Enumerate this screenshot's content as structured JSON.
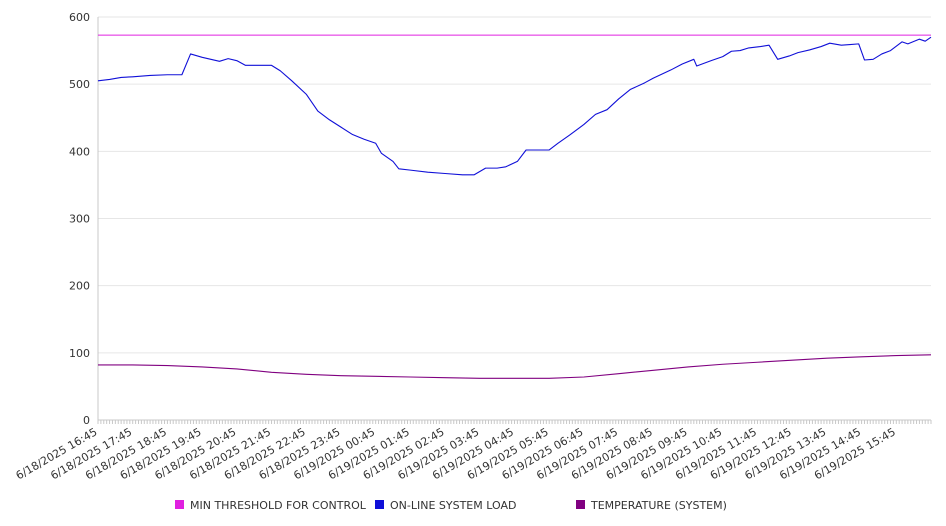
{
  "chart_data": {
    "type": "line",
    "title": "",
    "xlabel": "",
    "ylabel": "",
    "x_start": "6/18/2025 16:45",
    "x_end": "6/19/2025 16:45",
    "x_ticks": [
      "6/18/2025 16:45",
      "6/18/2025 17:45",
      "6/18/2025 18:45",
      "6/18/2025 19:45",
      "6/18/2025 20:45",
      "6/18/2025 21:45",
      "6/18/2025 22:45",
      "6/18/2025 23:45",
      "6/19/2025 00:45",
      "6/19/2025 01:45",
      "6/19/2025 02:45",
      "6/19/2025 03:45",
      "6/19/2025 04:45",
      "6/19/2025 05:45",
      "6/19/2025 06:45",
      "6/19/2025 07:45",
      "6/19/2025 08:45",
      "6/19/2025 09:45",
      "6/19/2025 10:45",
      "6/19/2025 11:45",
      "6/19/2025 12:45",
      "6/19/2025 13:45",
      "6/19/2025 14:45",
      "6/19/2025 15:45"
    ],
    "y_ticks": [
      "0",
      "100",
      "200",
      "300",
      "400",
      "500",
      "600"
    ],
    "ylim": [
      0,
      600
    ],
    "grid": true,
    "legend_position": "bottom",
    "series": [
      {
        "name": "MIN THRESHOLD FOR CONTROL",
        "color": "#e020e0",
        "points": [
          [
            "6/18/2025 16:45",
            573
          ],
          [
            "6/19/2025 16:45",
            573
          ]
        ]
      },
      {
        "name": "ON-LINE SYSTEM LOAD",
        "color": "#1010d8",
        "points": [
          [
            "6/18/2025 16:45",
            505
          ],
          [
            "6/18/2025 17:05",
            507
          ],
          [
            "6/18/2025 17:25",
            510
          ],
          [
            "6/18/2025 17:45",
            511
          ],
          [
            "6/18/2025 18:15",
            513
          ],
          [
            "6/18/2025 18:45",
            514
          ],
          [
            "6/18/2025 19:10",
            514
          ],
          [
            "6/18/2025 19:25",
            545
          ],
          [
            "6/18/2025 19:45",
            540
          ],
          [
            "6/18/2025 20:15",
            534
          ],
          [
            "6/18/2025 20:30",
            538
          ],
          [
            "6/18/2025 20:45",
            535
          ],
          [
            "6/18/2025 21:00",
            528
          ],
          [
            "6/18/2025 21:30",
            528
          ],
          [
            "6/18/2025 21:45",
            528
          ],
          [
            "6/18/2025 22:00",
            520
          ],
          [
            "6/18/2025 22:20",
            505
          ],
          [
            "6/18/2025 22:45",
            485
          ],
          [
            "6/18/2025 23:05",
            460
          ],
          [
            "6/18/2025 23:25",
            447
          ],
          [
            "6/18/2025 23:45",
            436
          ],
          [
            "6/19/2025 00:05",
            425
          ],
          [
            "6/19/2025 00:25",
            418
          ],
          [
            "6/19/2025 00:45",
            412
          ],
          [
            "6/19/2025 00:55",
            397
          ],
          [
            "6/19/2025 01:15",
            385
          ],
          [
            "6/19/2025 01:25",
            374
          ],
          [
            "6/19/2025 01:45",
            372
          ],
          [
            "6/19/2025 02:15",
            369
          ],
          [
            "6/19/2025 02:45",
            367
          ],
          [
            "6/19/2025 03:15",
            365
          ],
          [
            "6/19/2025 03:35",
            365
          ],
          [
            "6/19/2025 03:55",
            375
          ],
          [
            "6/19/2025 04:15",
            375
          ],
          [
            "6/19/2025 04:30",
            377
          ],
          [
            "6/19/2025 04:50",
            385
          ],
          [
            "6/19/2025 05:05",
            402
          ],
          [
            "6/19/2025 05:25",
            402
          ],
          [
            "6/19/2025 05:45",
            402
          ],
          [
            "6/19/2025 06:00",
            412
          ],
          [
            "6/19/2025 06:20",
            424
          ],
          [
            "6/19/2025 06:45",
            440
          ],
          [
            "6/19/2025 07:05",
            455
          ],
          [
            "6/19/2025 07:25",
            462
          ],
          [
            "6/19/2025 07:45",
            478
          ],
          [
            "6/19/2025 08:05",
            492
          ],
          [
            "6/19/2025 08:30",
            502
          ],
          [
            "6/19/2025 08:45",
            509
          ],
          [
            "6/19/2025 09:15",
            521
          ],
          [
            "6/19/2025 09:35",
            530
          ],
          [
            "6/19/2025 09:55",
            537
          ],
          [
            "6/19/2025 10:00",
            527
          ],
          [
            "6/19/2025 10:25",
            535
          ],
          [
            "6/19/2025 10:45",
            541
          ],
          [
            "6/19/2025 11:00",
            549
          ],
          [
            "6/19/2025 11:15",
            550
          ],
          [
            "6/19/2025 11:30",
            554
          ],
          [
            "6/19/2025 11:50",
            556
          ],
          [
            "6/19/2025 12:05",
            558
          ],
          [
            "6/19/2025 12:20",
            537
          ],
          [
            "6/19/2025 12:40",
            542
          ],
          [
            "6/19/2025 12:55",
            547
          ],
          [
            "6/19/2025 13:15",
            551
          ],
          [
            "6/19/2025 13:35",
            556
          ],
          [
            "6/19/2025 13:50",
            561
          ],
          [
            "6/19/2025 14:10",
            558
          ],
          [
            "6/19/2025 14:25",
            559
          ],
          [
            "6/19/2025 14:40",
            560
          ],
          [
            "6/19/2025 14:50",
            536
          ],
          [
            "6/19/2025 15:05",
            537
          ],
          [
            "6/19/2025 15:20",
            545
          ],
          [
            "6/19/2025 15:35",
            550
          ],
          [
            "6/19/2025 15:55",
            563
          ],
          [
            "6/19/2025 16:05",
            560
          ],
          [
            "6/19/2025 16:25",
            567
          ],
          [
            "6/19/2025 16:35",
            564
          ],
          [
            "6/19/2025 16:45",
            570
          ]
        ]
      },
      {
        "name": "TEMPERATURE (SYSTEM)",
        "color": "#800080",
        "points": [
          [
            "6/18/2025 16:45",
            82
          ],
          [
            "6/18/2025 17:45",
            82
          ],
          [
            "6/18/2025 18:45",
            81
          ],
          [
            "6/18/2025 19:45",
            79
          ],
          [
            "6/18/2025 20:45",
            76
          ],
          [
            "6/18/2025 21:45",
            71
          ],
          [
            "6/18/2025 22:45",
            68
          ],
          [
            "6/18/2025 23:45",
            66
          ],
          [
            "6/19/2025 00:45",
            65
          ],
          [
            "6/19/2025 01:45",
            64
          ],
          [
            "6/19/2025 02:45",
            63
          ],
          [
            "6/19/2025 03:45",
            62
          ],
          [
            "6/19/2025 04:45",
            62
          ],
          [
            "6/19/2025 05:45",
            62
          ],
          [
            "6/19/2025 06:45",
            64
          ],
          [
            "6/19/2025 07:45",
            69
          ],
          [
            "6/19/2025 08:45",
            74
          ],
          [
            "6/19/2025 09:45",
            79
          ],
          [
            "6/19/2025 10:45",
            83
          ],
          [
            "6/19/2025 11:45",
            86
          ],
          [
            "6/19/2025 12:45",
            89
          ],
          [
            "6/19/2025 13:45",
            92
          ],
          [
            "6/19/2025 14:45",
            94
          ],
          [
            "6/19/2025 15:45",
            96
          ],
          [
            "6/19/2025 16:45",
            97
          ]
        ]
      }
    ]
  }
}
